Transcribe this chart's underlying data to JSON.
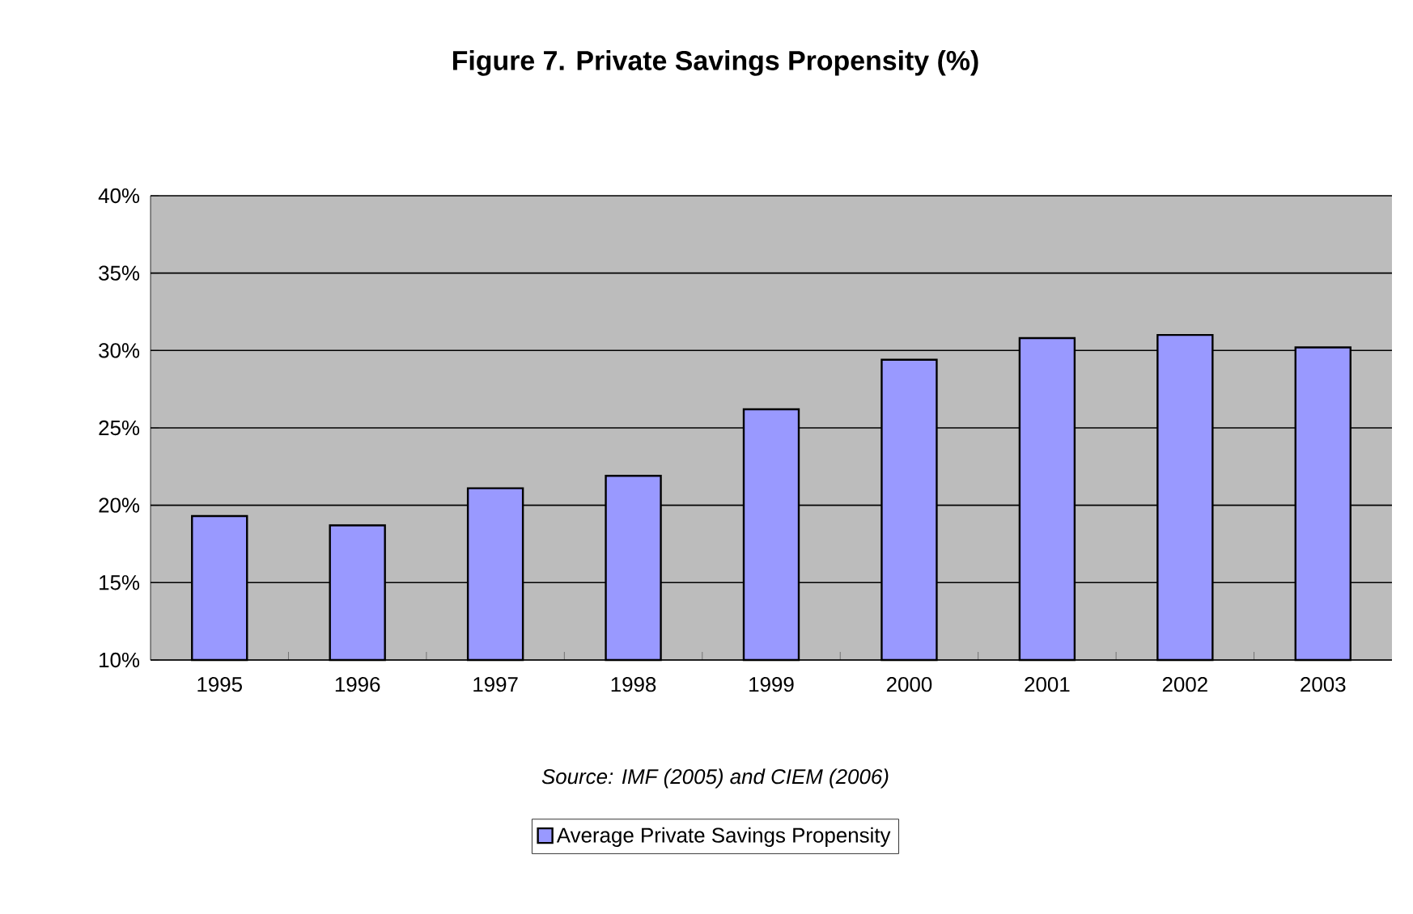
{
  "chart_data": {
    "type": "bar",
    "title": "Figure 7. Private Savings Propensity (%)",
    "categories": [
      "1995",
      "1996",
      "1997",
      "1998",
      "1999",
      "2000",
      "2001",
      "2002",
      "2003"
    ],
    "series": [
      {
        "name": "Average Private Savings Propensity",
        "color": "#9999ff",
        "values": [
          19.3,
          18.7,
          21.1,
          21.9,
          26.2,
          29.4,
          30.8,
          31.0,
          30.2
        ]
      }
    ],
    "ylim": [
      10,
      40
    ],
    "yticks": [
      {
        "value": 10,
        "label": "10%"
      },
      {
        "value": 15,
        "label": "15%"
      },
      {
        "value": 20,
        "label": "20%"
      },
      {
        "value": 25,
        "label": "25%"
      },
      {
        "value": 30,
        "label": "30%"
      },
      {
        "value": 35,
        "label": "35%"
      },
      {
        "value": 40,
        "label": "40%"
      }
    ],
    "grid": "y",
    "legend": "bottom",
    "annotations": [
      "Source: IMF (2005) and CIEM (2006)"
    ]
  }
}
